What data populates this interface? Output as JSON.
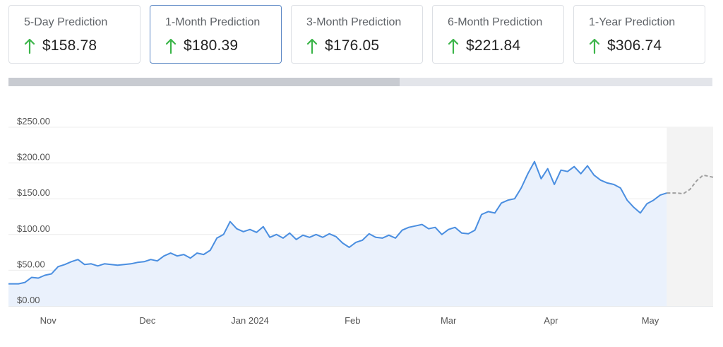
{
  "cards": [
    {
      "label": "5-Day Prediction",
      "value": "$158.78",
      "direction": "up",
      "active": false
    },
    {
      "label": "1-Month Prediction",
      "value": "$180.39",
      "direction": "up",
      "active": true
    },
    {
      "label": "3-Month Prediction",
      "value": "$176.05",
      "direction": "up",
      "active": false
    },
    {
      "label": "6-Month Prediction",
      "value": "$221.84",
      "direction": "up",
      "active": false
    },
    {
      "label": "1-Year Prediction",
      "value": "$306.74",
      "direction": "up",
      "active": false
    }
  ],
  "colors": {
    "up_arrow": "#3cb54a",
    "line": "#4a8ee0",
    "area": "#eaf1fc",
    "forecast_line": "#a0a0a0",
    "forecast_area": "#f3f3f3",
    "grid": "#ececec",
    "active_border": "#5a86c4"
  },
  "range_selector": {
    "selected_fraction": 0.556
  },
  "chart_data": {
    "type": "line",
    "title": "",
    "xlabel": "",
    "ylabel": "",
    "ylim": [
      0,
      250
    ],
    "xlim": [
      "2023-10-20",
      "2024-05-20"
    ],
    "grid": true,
    "y_ticks": [
      {
        "value": 0,
        "label": "$0.00"
      },
      {
        "value": 50,
        "label": "$50.00"
      },
      {
        "value": 100,
        "label": "$100.00"
      },
      {
        "value": 150,
        "label": "$150.00"
      },
      {
        "value": 200,
        "label": "$200.00"
      },
      {
        "value": 250,
        "label": "$250.00"
      }
    ],
    "x_ticks": [
      {
        "date": "2023-11-01",
        "label": "Nov"
      },
      {
        "date": "2023-12-01",
        "label": "Dec"
      },
      {
        "date": "2024-01-01",
        "label": "Jan 2024"
      },
      {
        "date": "2024-02-01",
        "label": "Feb"
      },
      {
        "date": "2024-03-01",
        "label": "Mar"
      },
      {
        "date": "2024-04-01",
        "label": "Apr"
      },
      {
        "date": "2024-05-01",
        "label": "May"
      }
    ],
    "series": [
      {
        "kind": "historical",
        "points": [
          {
            "x": "2023-10-20",
            "y": 31
          },
          {
            "x": "2023-10-23",
            "y": 31
          },
          {
            "x": "2023-10-25",
            "y": 33
          },
          {
            "x": "2023-10-27",
            "y": 40
          },
          {
            "x": "2023-10-29",
            "y": 39
          },
          {
            "x": "2023-10-31",
            "y": 43
          },
          {
            "x": "2023-11-02",
            "y": 45
          },
          {
            "x": "2023-11-04",
            "y": 55
          },
          {
            "x": "2023-11-06",
            "y": 58
          },
          {
            "x": "2023-11-08",
            "y": 62
          },
          {
            "x": "2023-11-10",
            "y": 65
          },
          {
            "x": "2023-11-12",
            "y": 58
          },
          {
            "x": "2023-11-14",
            "y": 59
          },
          {
            "x": "2023-11-16",
            "y": 56
          },
          {
            "x": "2023-11-18",
            "y": 59
          },
          {
            "x": "2023-11-20",
            "y": 58
          },
          {
            "x": "2023-11-22",
            "y": 57
          },
          {
            "x": "2023-11-24",
            "y": 58
          },
          {
            "x": "2023-11-26",
            "y": 59
          },
          {
            "x": "2023-11-28",
            "y": 61
          },
          {
            "x": "2023-11-30",
            "y": 62
          },
          {
            "x": "2023-12-02",
            "y": 65
          },
          {
            "x": "2023-12-04",
            "y": 63
          },
          {
            "x": "2023-12-06",
            "y": 70
          },
          {
            "x": "2023-12-08",
            "y": 74
          },
          {
            "x": "2023-12-10",
            "y": 70
          },
          {
            "x": "2023-12-12",
            "y": 72
          },
          {
            "x": "2023-12-14",
            "y": 67
          },
          {
            "x": "2023-12-16",
            "y": 74
          },
          {
            "x": "2023-12-18",
            "y": 72
          },
          {
            "x": "2023-12-20",
            "y": 78
          },
          {
            "x": "2023-12-22",
            "y": 95
          },
          {
            "x": "2023-12-24",
            "y": 100
          },
          {
            "x": "2023-12-26",
            "y": 118
          },
          {
            "x": "2023-12-28",
            "y": 108
          },
          {
            "x": "2023-12-30",
            "y": 104
          },
          {
            "x": "2024-01-01",
            "y": 107
          },
          {
            "x": "2024-01-03",
            "y": 103
          },
          {
            "x": "2024-01-05",
            "y": 111
          },
          {
            "x": "2024-01-07",
            "y": 96
          },
          {
            "x": "2024-01-09",
            "y": 100
          },
          {
            "x": "2024-01-11",
            "y": 95
          },
          {
            "x": "2024-01-13",
            "y": 102
          },
          {
            "x": "2024-01-15",
            "y": 93
          },
          {
            "x": "2024-01-17",
            "y": 99
          },
          {
            "x": "2024-01-19",
            "y": 96
          },
          {
            "x": "2024-01-21",
            "y": 100
          },
          {
            "x": "2024-01-23",
            "y": 96
          },
          {
            "x": "2024-01-25",
            "y": 101
          },
          {
            "x": "2024-01-27",
            "y": 97
          },
          {
            "x": "2024-01-29",
            "y": 88
          },
          {
            "x": "2024-01-31",
            "y": 82
          },
          {
            "x": "2024-02-02",
            "y": 89
          },
          {
            "x": "2024-02-04",
            "y": 92
          },
          {
            "x": "2024-02-06",
            "y": 101
          },
          {
            "x": "2024-02-08",
            "y": 96
          },
          {
            "x": "2024-02-10",
            "y": 95
          },
          {
            "x": "2024-02-12",
            "y": 99
          },
          {
            "x": "2024-02-14",
            "y": 95
          },
          {
            "x": "2024-02-16",
            "y": 106
          },
          {
            "x": "2024-02-18",
            "y": 110
          },
          {
            "x": "2024-02-20",
            "y": 112
          },
          {
            "x": "2024-02-22",
            "y": 114
          },
          {
            "x": "2024-02-24",
            "y": 108
          },
          {
            "x": "2024-02-26",
            "y": 110
          },
          {
            "x": "2024-02-28",
            "y": 100
          },
          {
            "x": "2024-03-01",
            "y": 107
          },
          {
            "x": "2024-03-03",
            "y": 110
          },
          {
            "x": "2024-03-05",
            "y": 102
          },
          {
            "x": "2024-03-07",
            "y": 101
          },
          {
            "x": "2024-03-09",
            "y": 106
          },
          {
            "x": "2024-03-11",
            "y": 128
          },
          {
            "x": "2024-03-13",
            "y": 132
          },
          {
            "x": "2024-03-15",
            "y": 130
          },
          {
            "x": "2024-03-17",
            "y": 144
          },
          {
            "x": "2024-03-19",
            "y": 148
          },
          {
            "x": "2024-03-21",
            "y": 150
          },
          {
            "x": "2024-03-23",
            "y": 165
          },
          {
            "x": "2024-03-25",
            "y": 185
          },
          {
            "x": "2024-03-27",
            "y": 202
          },
          {
            "x": "2024-03-29",
            "y": 178
          },
          {
            "x": "2024-03-31",
            "y": 192
          },
          {
            "x": "2024-04-02",
            "y": 170
          },
          {
            "x": "2024-04-04",
            "y": 190
          },
          {
            "x": "2024-04-06",
            "y": 188
          },
          {
            "x": "2024-04-08",
            "y": 195
          },
          {
            "x": "2024-04-10",
            "y": 185
          },
          {
            "x": "2024-04-12",
            "y": 196
          },
          {
            "x": "2024-04-14",
            "y": 183
          },
          {
            "x": "2024-04-16",
            "y": 176
          },
          {
            "x": "2024-04-18",
            "y": 172
          },
          {
            "x": "2024-04-20",
            "y": 170
          },
          {
            "x": "2024-04-22",
            "y": 165
          },
          {
            "x": "2024-04-24",
            "y": 148
          },
          {
            "x": "2024-04-26",
            "y": 138
          },
          {
            "x": "2024-04-28",
            "y": 130
          },
          {
            "x": "2024-04-30",
            "y": 143
          },
          {
            "x": "2024-05-02",
            "y": 148
          },
          {
            "x": "2024-05-04",
            "y": 155
          },
          {
            "x": "2024-05-06",
            "y": 158
          }
        ]
      },
      {
        "kind": "forecast",
        "points": [
          {
            "x": "2024-05-06",
            "y": 158
          },
          {
            "x": "2024-05-09",
            "y": 158
          },
          {
            "x": "2024-05-11",
            "y": 157
          },
          {
            "x": "2024-05-13",
            "y": 163
          },
          {
            "x": "2024-05-15",
            "y": 175
          },
          {
            "x": "2024-05-17",
            "y": 183
          },
          {
            "x": "2024-05-20",
            "y": 180
          }
        ]
      }
    ]
  }
}
